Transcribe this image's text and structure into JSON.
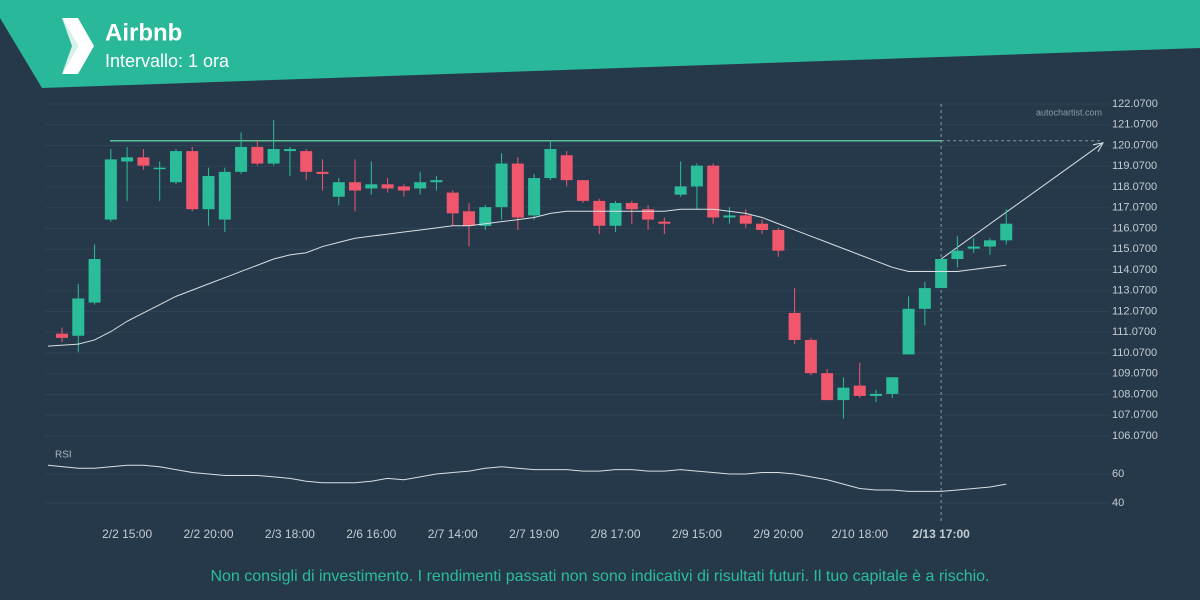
{
  "chart_data": {
    "type": "candlestick",
    "title": "Airbnb",
    "subtitle": "Intervallo: 1 ora",
    "watermark": "autochartist.com",
    "disclaimer": "Non consigli di investimento. I rendimenti passati non sono indicativi di risultati futuri. Il tuo capitale è a rischio.",
    "categories": [
      null,
      null,
      null,
      null,
      "2/2 15:00",
      null,
      null,
      null,
      null,
      "2/2 20:00",
      null,
      null,
      null,
      null,
      "2/3 18:00",
      null,
      null,
      null,
      null,
      "2/6 16:00",
      null,
      null,
      null,
      null,
      "2/7 14:00",
      null,
      null,
      null,
      null,
      "2/7 19:00",
      null,
      null,
      null,
      null,
      "2/8 17:00",
      null,
      null,
      null,
      null,
      "2/9 15:00",
      null,
      null,
      null,
      null,
      "2/9 20:00",
      null,
      null,
      null,
      null,
      "2/10 18:00",
      null,
      null,
      null,
      null,
      "2/13 17:00",
      null,
      null,
      null,
      null
    ],
    "open": [
      111.0,
      110.9,
      112.5,
      116.5,
      119.3,
      119.5,
      119.0,
      118.3,
      119.8,
      117.0,
      116.5,
      118.8,
      120.0,
      119.2,
      119.8,
      119.8,
      118.8,
      117.6,
      118.3,
      118.0,
      118.2,
      118.1,
      118.0,
      118.3,
      117.8,
      116.9,
      116.2,
      117.1,
      119.2,
      116.7,
      118.5,
      119.6,
      118.4,
      117.4,
      116.2,
      117.3,
      117.0,
      116.4,
      117.7,
      118.1,
      119.1,
      116.6,
      116.7,
      116.3,
      116.0,
      112.0,
      110.7,
      109.1,
      107.8,
      108.5,
      108.0,
      108.1,
      110.0,
      112.2,
      113.2,
      114.6,
      115.1,
      115.2,
      115.5
    ],
    "high": [
      111.3,
      113.4,
      115.3,
      119.9,
      120.0,
      119.9,
      119.3,
      119.9,
      120.0,
      119.0,
      119.0,
      120.7,
      120.3,
      121.3,
      120.0,
      119.9,
      119.4,
      118.5,
      119.4,
      119.3,
      118.5,
      118.2,
      118.8,
      118.6,
      117.9,
      117.3,
      117.2,
      119.7,
      119.5,
      118.7,
      120.3,
      119.8,
      118.4,
      117.5,
      117.4,
      117.4,
      117.2,
      116.6,
      119.3,
      119.2,
      119.2,
      117.1,
      117.0,
      116.5,
      116.1,
      113.2,
      110.8,
      109.3,
      108.9,
      109.6,
      108.3,
      108.9,
      112.8,
      113.5,
      114.6,
      115.7,
      115.6,
      115.6,
      117.0
    ],
    "low": [
      110.6,
      110.1,
      112.4,
      116.4,
      117.4,
      118.9,
      117.4,
      118.2,
      116.9,
      116.2,
      115.9,
      118.7,
      119.1,
      119.1,
      118.6,
      118.4,
      117.9,
      117.2,
      116.9,
      117.7,
      117.8,
      117.6,
      117.7,
      117.9,
      116.2,
      115.2,
      116.0,
      116.5,
      116.0,
      116.5,
      118.4,
      118.1,
      117.3,
      115.8,
      115.9,
      116.3,
      116.0,
      115.8,
      117.6,
      117.0,
      116.3,
      116.3,
      116.1,
      115.8,
      114.7,
      110.5,
      109.0,
      107.8,
      106.9,
      107.9,
      107.7,
      107.9,
      110.0,
      111.4,
      113.2,
      114.2,
      114.9,
      114.8,
      115.3
    ],
    "close": [
      110.8,
      112.7,
      114.6,
      119.4,
      119.5,
      119.1,
      119.0,
      119.8,
      117.0,
      118.6,
      118.8,
      120.0,
      119.2,
      119.9,
      119.9,
      118.8,
      118.7,
      118.3,
      117.9,
      118.2,
      118.0,
      117.9,
      118.3,
      118.4,
      116.8,
      116.2,
      117.1,
      119.2,
      116.6,
      118.5,
      119.9,
      118.4,
      117.4,
      116.2,
      117.3,
      117.0,
      116.5,
      116.3,
      118.1,
      119.1,
      116.6,
      116.7,
      116.3,
      116.0,
      115.0,
      110.7,
      109.1,
      107.8,
      108.4,
      108.0,
      108.1,
      108.9,
      112.2,
      113.2,
      114.6,
      115.0,
      115.2,
      115.5,
      116.3
    ],
    "ma": [
      110.4,
      110.5,
      110.7,
      111.1,
      111.6,
      112.0,
      112.4,
      112.8,
      113.1,
      113.4,
      113.7,
      114.0,
      114.3,
      114.6,
      114.8,
      114.9,
      115.2,
      115.4,
      115.6,
      115.7,
      115.8,
      115.9,
      116.0,
      116.1,
      116.2,
      116.2,
      116.3,
      116.4,
      116.5,
      116.6,
      116.8,
      116.9,
      116.9,
      116.9,
      116.9,
      116.9,
      116.9,
      116.9,
      117.0,
      117.0,
      117.0,
      116.9,
      116.8,
      116.6,
      116.3,
      116.0,
      115.7,
      115.4,
      115.1,
      114.8,
      114.5,
      114.2,
      114.0,
      114.0,
      114.0,
      114.0,
      114.1,
      114.2,
      114.3
    ],
    "resistance": 120.3,
    "projection": [
      114.6,
      120.2
    ],
    "up_color": "#2bbd9a",
    "down_color": "#f0566c",
    "ylim": [
      106.07,
      122.07
    ],
    "yticks": [
      {
        "value": 106.07,
        "label": "106.0700"
      },
      {
        "value": 107.07,
        "label": "107.0700"
      },
      {
        "value": 108.07,
        "label": "108.0700"
      },
      {
        "value": 109.07,
        "label": "109.0700"
      },
      {
        "value": 110.07,
        "label": "110.0700"
      },
      {
        "value": 111.07,
        "label": "111.0700"
      },
      {
        "value": 112.07,
        "label": "112.0700"
      },
      {
        "value": 113.07,
        "label": "113.0700"
      },
      {
        "value": 114.07,
        "label": "114.0700"
      },
      {
        "value": 115.07,
        "label": "115.0700"
      },
      {
        "value": 116.07,
        "label": "116.0700"
      },
      {
        "value": 117.07,
        "label": "117.0700"
      },
      {
        "value": 118.07,
        "label": "118.0700"
      },
      {
        "value": 119.07,
        "label": "119.0700"
      },
      {
        "value": 120.07,
        "label": "120.0700"
      },
      {
        "value": 121.07,
        "label": "121.0700"
      },
      {
        "value": 122.07,
        "label": "122.0700"
      }
    ],
    "rsi_title": "RSI",
    "rsi": [
      66,
      64,
      64,
      65,
      66,
      66,
      65,
      63,
      61,
      60,
      59,
      59,
      59,
      58,
      57,
      55,
      54,
      54,
      54,
      55,
      57,
      56,
      58,
      60,
      61,
      62,
      64,
      65,
      64,
      63,
      63,
      63,
      62,
      62,
      63,
      63,
      62,
      62,
      63,
      62,
      61,
      60,
      60,
      61,
      61,
      60,
      58,
      56,
      53,
      50,
      49,
      49,
      48,
      48,
      48,
      49,
      50,
      51,
      53
    ],
    "rsi_ylim": [
      40,
      60
    ],
    "rsi_yticks": [
      40,
      60
    ]
  }
}
